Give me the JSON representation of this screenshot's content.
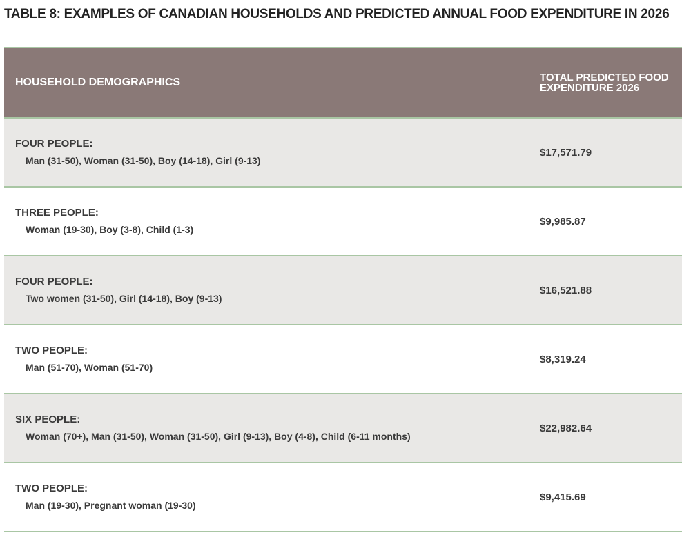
{
  "title": "TABLE 8: EXAMPLES OF CANADIAN HOUSEHOLDS AND PREDICTED ANNUAL FOOD EXPENDITURE IN 2026",
  "table": {
    "header": [
      "HOUSEHOLD DEMOGRAPHICS",
      "TOTAL PREDICTED FOOD EXPENDITURE 2026"
    ],
    "rows": [
      {
        "group": "FOUR PEOPLE:",
        "members": "Man (31-50), Woman (31-50), Boy (14-18), Girl (9-13)",
        "cost": "$17,571.79"
      },
      {
        "group": "THREE PEOPLE:",
        "members": "Woman (19-30), Boy (3-8), Child (1-3)",
        "cost": "$9,985.87"
      },
      {
        "group": "FOUR PEOPLE:",
        "members": "Two women (31-50), Girl (14-18), Boy (9-13)",
        "cost": "$16,521.88"
      },
      {
        "group": "TWO PEOPLE:",
        "members": "Man (51-70), Woman (51-70)",
        "cost": "$8,319.24"
      },
      {
        "group": "SIX PEOPLE:",
        "members": "Woman (70+), Man (31-50), Woman (31-50), Girl (9-13), Boy (4-8), Child (6-11 months)",
        "cost": "$22,982.64"
      },
      {
        "group": "TWO PEOPLE:",
        "members": "Man (19-30), Pregnant woman (19-30)",
        "cost": "$9,415.69"
      }
    ]
  }
}
